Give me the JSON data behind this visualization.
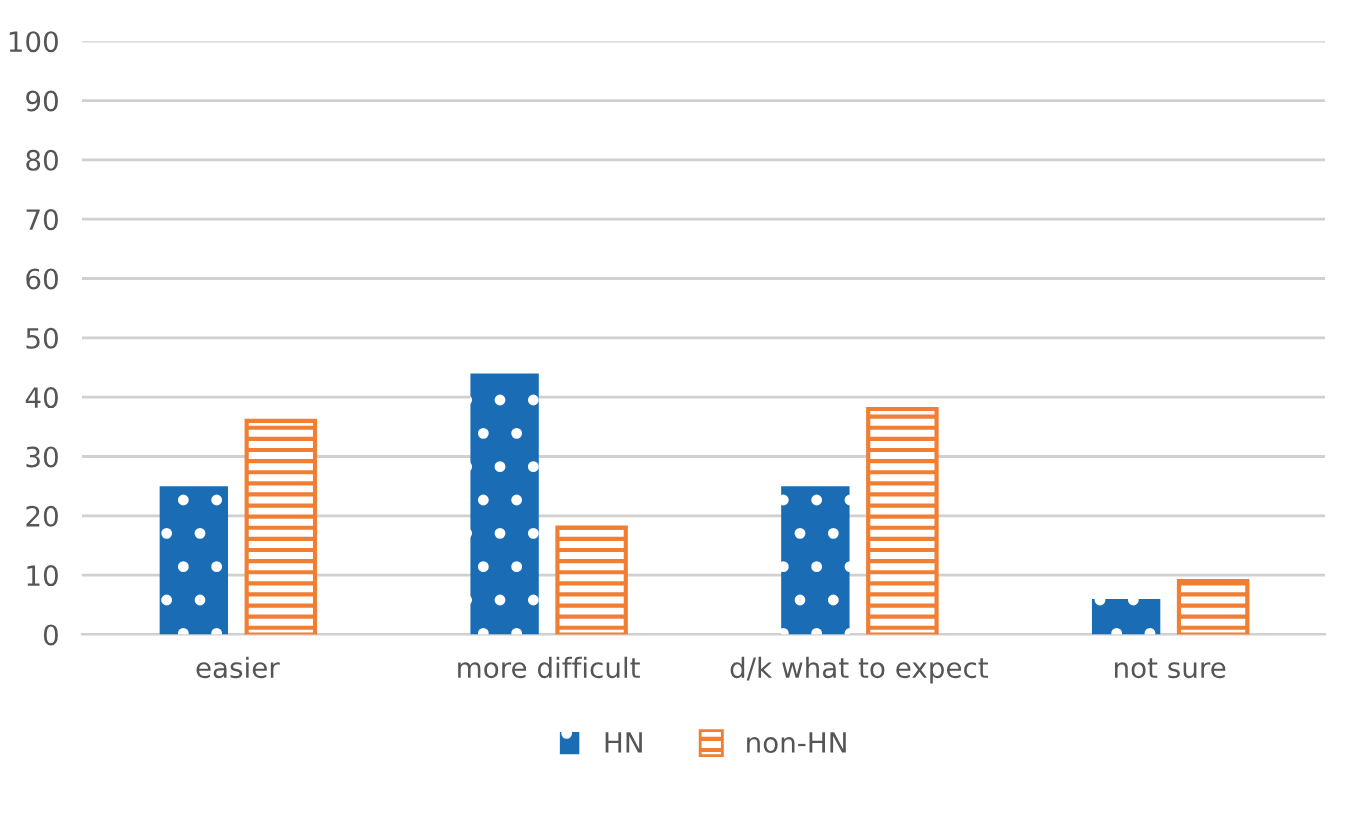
{
  "chart_data": {
    "type": "bar",
    "categories": [
      "easier",
      "more difficult",
      "d/k what to expect",
      "not sure"
    ],
    "series": [
      {
        "name": "HN",
        "color": "#1a6db5",
        "values": [
          25,
          44,
          25,
          6
        ]
      },
      {
        "name": "non-HN",
        "color": "#f07e33",
        "values": [
          36,
          18,
          38,
          9
        ]
      }
    ],
    "ylim": [
      0,
      100
    ],
    "yticks": [
      0,
      10,
      20,
      30,
      40,
      50,
      60,
      70,
      80,
      90,
      100
    ],
    "grid": "y",
    "legend": "bottom"
  }
}
